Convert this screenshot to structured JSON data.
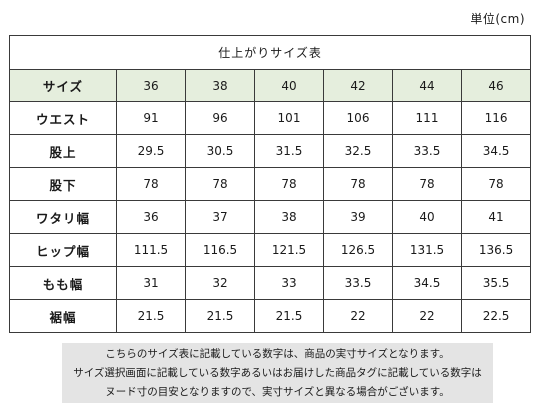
{
  "unit_label": "単位(cm)",
  "table": {
    "title": "仕上がりサイズ表",
    "header_label": "サイズ",
    "sizes": [
      "36",
      "38",
      "40",
      "42",
      "44",
      "46"
    ],
    "rows": [
      {
        "label": "ウエスト",
        "values": [
          "91",
          "96",
          "101",
          "106",
          "111",
          "116"
        ]
      },
      {
        "label": "股上",
        "values": [
          "29.5",
          "30.5",
          "31.5",
          "32.5",
          "33.5",
          "34.5"
        ]
      },
      {
        "label": "股下",
        "values": [
          "78",
          "78",
          "78",
          "78",
          "78",
          "78"
        ]
      },
      {
        "label": "ワタリ幅",
        "values": [
          "36",
          "37",
          "38",
          "39",
          "40",
          "41"
        ]
      },
      {
        "label": "ヒップ幅",
        "values": [
          "111.5",
          "116.5",
          "121.5",
          "126.5",
          "131.5",
          "136.5"
        ]
      },
      {
        "label": "もも幅",
        "values": [
          "31",
          "32",
          "33",
          "33.5",
          "34.5",
          "35.5"
        ]
      },
      {
        "label": "裾幅",
        "values": [
          "21.5",
          "21.5",
          "21.5",
          "22",
          "22",
          "22.5"
        ]
      }
    ]
  },
  "note": {
    "lines": [
      "こちらのサイズ表に記載している数字は、商品の実寸サイズとなります。",
      "サイズ選択画面に記載している数字あるいはお届けした商品タグに記載している数字は",
      "ヌード寸の目安となりますので、実寸サイズと異なる場合がございます。"
    ]
  },
  "colors": {
    "size_row_background": "#e5eedd",
    "note_background": "#e4e4e4",
    "border": "#3a3a3a"
  }
}
